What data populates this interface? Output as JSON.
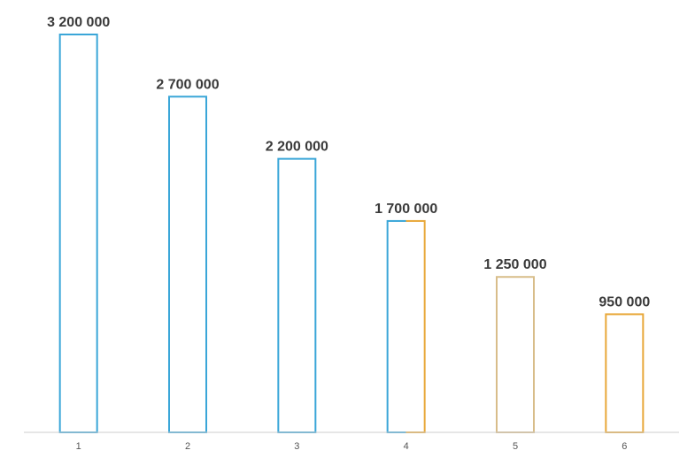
{
  "chart_data": {
    "type": "bar",
    "categories": [
      "1",
      "2",
      "3",
      "4",
      "5",
      "6"
    ],
    "values": [
      3200000,
      2700000,
      2200000,
      1700000,
      1250000,
      950000
    ],
    "data_labels": [
      "3 200 000",
      "2 700 000",
      "2 200 000",
      "1 700 000",
      "1 250 000",
      "950 000"
    ],
    "bar_colors": [
      [
        "#3aa6d8",
        "#3aa6d8"
      ],
      [
        "#3aa6d8",
        "#3aa6d8"
      ],
      [
        "#3aa6d8",
        "#3aa6d8"
      ],
      [
        "#3aa6d8",
        "#e8a83a"
      ],
      [
        "#d8bd8a",
        "#d8bd8a"
      ],
      [
        "#e8a83a",
        "#e8a83a"
      ]
    ],
    "axis_color": "#cccccc",
    "ylim": [
      0,
      3200000
    ],
    "grid": false,
    "legend": "none",
    "title": "",
    "xlabel": "",
    "ylabel": ""
  }
}
